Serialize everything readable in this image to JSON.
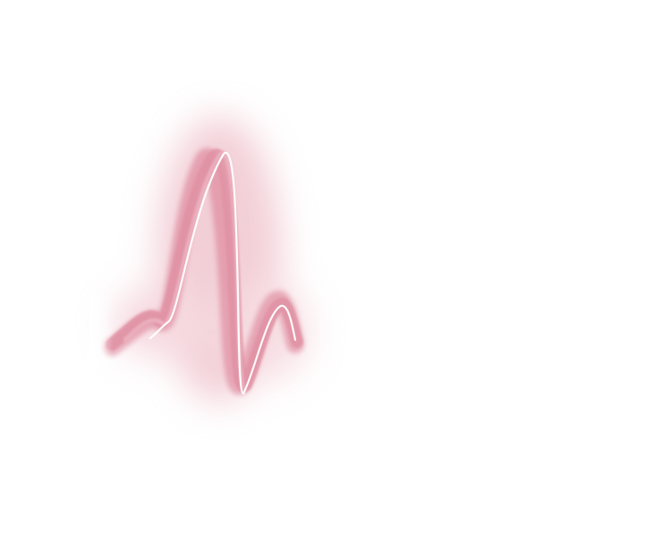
{
  "image": {
    "subject": "glowing-pulse-wave",
    "colors": {
      "background": "#ffffff",
      "glow": "#e8a7b6",
      "band": "#d9788f",
      "band_light": "#ecb2c0",
      "highlight": "#ffffff"
    }
  }
}
